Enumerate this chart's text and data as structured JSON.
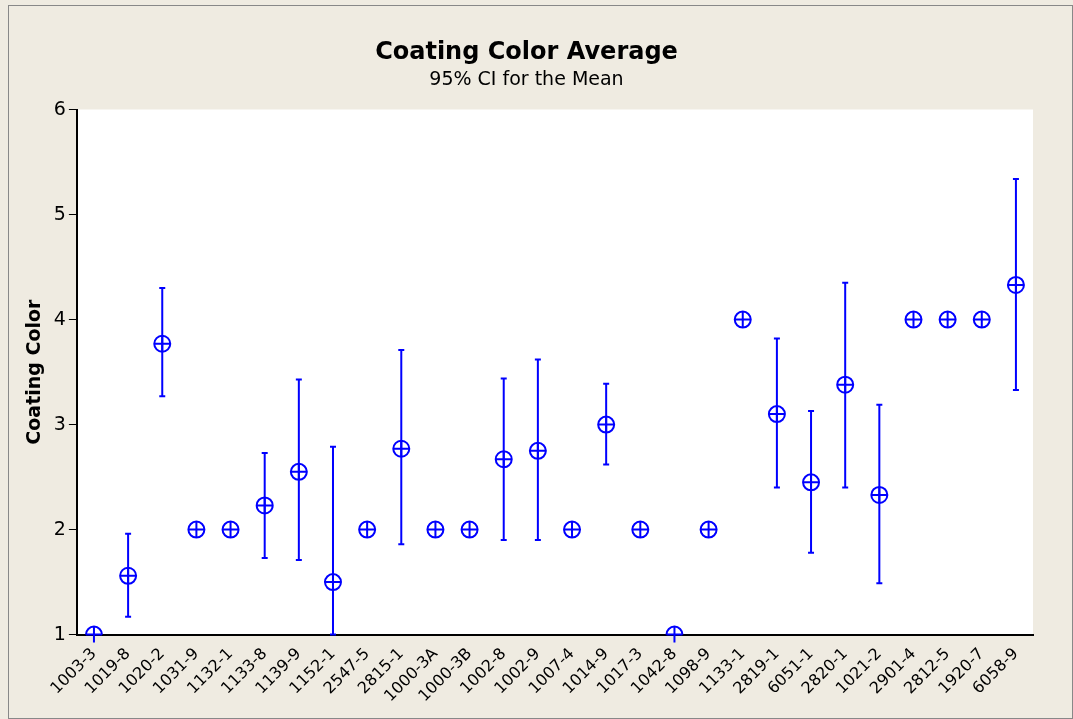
{
  "chart_data": {
    "type": "scatter",
    "title": "Coating Color Average",
    "subtitle": "95% CI for the Mean",
    "ylabel": "Coating Color",
    "categories": [
      "1003-3",
      "1019-8",
      "1020-2",
      "1031-9",
      "1132-1",
      "1133-8",
      "1139-9",
      "1152-1",
      "2547-5",
      "2815-1",
      "1000-3A",
      "1000-3B",
      "1002-8",
      "1002-9",
      "1007-4",
      "1014-9",
      "1017-3",
      "1042-8",
      "1098-9",
      "1133-1",
      "2819-1",
      "6051-1",
      "2820-1",
      "1021-2",
      "2901-4",
      "2812-5",
      "1920-7",
      "6058-9"
    ],
    "values": [
      1,
      1.56,
      3.77,
      2,
      2,
      2.23,
      2.55,
      1.5,
      2,
      2.77,
      2,
      2,
      2.67,
      2.75,
      2,
      3,
      2,
      1,
      2,
      4,
      3.1,
      2.45,
      3.38,
      2.33,
      4,
      4,
      4,
      4.33
    ],
    "errors": [
      null,
      [
        1.17,
        1.96
      ],
      [
        3.27,
        4.3
      ],
      null,
      null,
      [
        1.73,
        2.73
      ],
      [
        1.71,
        3.43
      ],
      [
        1,
        2.79
      ],
      null,
      [
        1.86,
        3.71
      ],
      null,
      null,
      [
        1.9,
        3.44
      ],
      [
        1.9,
        3.62
      ],
      null,
      [
        2.62,
        3.39
      ],
      null,
      null,
      null,
      null,
      [
        2.4,
        3.82
      ],
      [
        1.78,
        3.13
      ],
      [
        2.4,
        4.35
      ],
      [
        1.49,
        3.19
      ],
      null,
      null,
      null,
      [
        3.33,
        5.34
      ]
    ],
    "color": "#0000ff",
    "marker": "circle",
    "ylim": [
      1,
      6
    ],
    "yticks": [
      1,
      2,
      3,
      4,
      5,
      6
    ],
    "grid": false,
    "legend": false
  }
}
